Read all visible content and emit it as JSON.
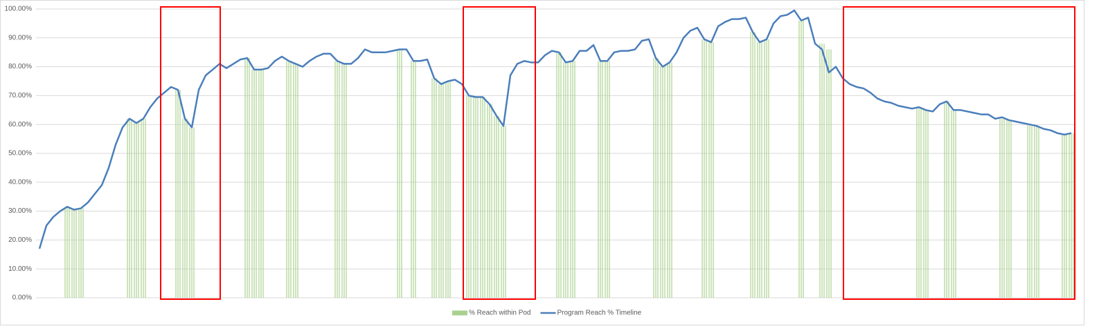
{
  "chart_data": {
    "type": "combo",
    "categories": [
      null,
      null,
      null,
      null,
      null,
      null,
      null,
      null,
      null,
      null,
      null,
      null,
      null,
      null,
      null,
      null,
      null,
      null,
      null,
      null,
      null,
      null,
      null,
      null,
      null,
      null,
      null,
      null,
      null,
      null,
      null,
      null,
      null,
      null,
      null,
      null,
      null,
      null,
      null,
      null,
      null,
      null,
      null,
      null,
      null,
      null,
      null,
      null,
      null,
      null,
      null,
      null,
      null,
      null,
      null,
      null,
      null,
      null,
      null,
      null,
      null,
      null,
      null,
      null,
      null,
      null,
      null,
      null,
      null,
      null,
      null,
      null,
      null,
      null,
      null,
      null,
      null,
      null,
      null,
      null,
      null,
      null,
      null,
      null,
      null,
      null,
      null,
      null,
      null,
      null,
      null,
      null,
      null,
      null,
      null,
      null,
      null,
      null,
      null,
      null,
      null,
      null,
      null,
      null,
      null,
      null,
      null,
      null,
      null,
      null,
      null,
      null,
      null,
      null,
      null,
      null,
      null,
      null,
      null,
      null,
      null,
      null,
      null,
      null,
      null,
      null,
      null,
      null,
      null,
      null,
      null,
      null,
      null,
      null,
      null,
      null,
      null,
      null,
      null,
      null,
      null,
      null,
      null,
      null,
      null,
      null,
      null,
      null,
      null,
      null
    ],
    "series": [
      {
        "name": "% Reach within Pod",
        "type": "bar",
        "color": "#a9d18e",
        "values": [
          null,
          null,
          null,
          null,
          31.5,
          30.5,
          31,
          null,
          null,
          null,
          null,
          null,
          null,
          62,
          60.5,
          62,
          null,
          null,
          null,
          null,
          72,
          62,
          59,
          null,
          null,
          null,
          null,
          null,
          null,
          null,
          83,
          79,
          79,
          null,
          null,
          null,
          82,
          81,
          null,
          null,
          null,
          null,
          null,
          82,
          81,
          null,
          null,
          null,
          null,
          null,
          null,
          null,
          86,
          null,
          82,
          null,
          null,
          76,
          74,
          75,
          null,
          null,
          70,
          69.5,
          69.5,
          67,
          63,
          59.5,
          null,
          null,
          null,
          null,
          null,
          null,
          null,
          85,
          81.5,
          82,
          null,
          null,
          null,
          82,
          82,
          null,
          null,
          null,
          null,
          null,
          null,
          83,
          80,
          81.5,
          null,
          null,
          null,
          null,
          89.5,
          88.5,
          null,
          null,
          null,
          null,
          null,
          92,
          88.5,
          89.5,
          null,
          null,
          null,
          null,
          96,
          null,
          null,
          88,
          86,
          null,
          null,
          null,
          null,
          null,
          null,
          null,
          null,
          null,
          null,
          null,
          null,
          66,
          65,
          null,
          null,
          68,
          65,
          null,
          null,
          null,
          null,
          null,
          null,
          62,
          61.5,
          null,
          null,
          60,
          59.5,
          null,
          null,
          null,
          56.5,
          57
        ]
      },
      {
        "name": "Program Reach % Timeline",
        "type": "line",
        "color": "#4a7ebb",
        "values": [
          17,
          25,
          28,
          30,
          31.5,
          30.5,
          31,
          33,
          36,
          39,
          45,
          53,
          59,
          62,
          60.5,
          62,
          66,
          69,
          71,
          73,
          72,
          62,
          59,
          72,
          77,
          79,
          81,
          79.5,
          81,
          82.5,
          83,
          79,
          79,
          79.5,
          82,
          83.5,
          82,
          81,
          80,
          82,
          83.5,
          84.5,
          84.5,
          82,
          81,
          81,
          83,
          86,
          85,
          85,
          85,
          85.5,
          86,
          86,
          82,
          82,
          82.5,
          76,
          74,
          75,
          75.5,
          74,
          70,
          69.5,
          69.5,
          67,
          63,
          59.5,
          77,
          81,
          82,
          81.5,
          81.5,
          84,
          85.5,
          85,
          81.5,
          82,
          85.5,
          85.5,
          87.5,
          82,
          82,
          85,
          85.5,
          85.5,
          86,
          89,
          89.5,
          83,
          80,
          81.5,
          85,
          90,
          92.5,
          93.5,
          89.5,
          88.5,
          94,
          95.5,
          96.5,
          96.5,
          97,
          92,
          88.5,
          89.5,
          95,
          97.5,
          98,
          99.5,
          96,
          97,
          88,
          86,
          78,
          80,
          76,
          74,
          73,
          72.5,
          71,
          69,
          68,
          67.5,
          66.5,
          66,
          65.5,
          66,
          65,
          64.5,
          67,
          68,
          65,
          65,
          64.5,
          64,
          63.5,
          63.5,
          62,
          62.5,
          61.5,
          61,
          60.5,
          60,
          59.5,
          58.5,
          58,
          57,
          56.5,
          57
        ]
      }
    ],
    "ylim": [
      0,
      100
    ],
    "yticks": [
      {
        "value": 0,
        "label": "0.00%"
      },
      {
        "value": 10,
        "label": "10.00%"
      },
      {
        "value": 20,
        "label": "20.00%"
      },
      {
        "value": 30,
        "label": "30.00%"
      },
      {
        "value": 40,
        "label": "40.00%"
      },
      {
        "value": 50,
        "label": "50.00%"
      },
      {
        "value": 60,
        "label": "60.00%"
      },
      {
        "value": 70,
        "label": "70.00%"
      },
      {
        "value": 80,
        "label": "80.00%"
      },
      {
        "value": 90,
        "label": "90.00%"
      },
      {
        "value": 100,
        "label": "100.00%"
      }
    ],
    "grid": true,
    "legend": "bottom"
  }
}
